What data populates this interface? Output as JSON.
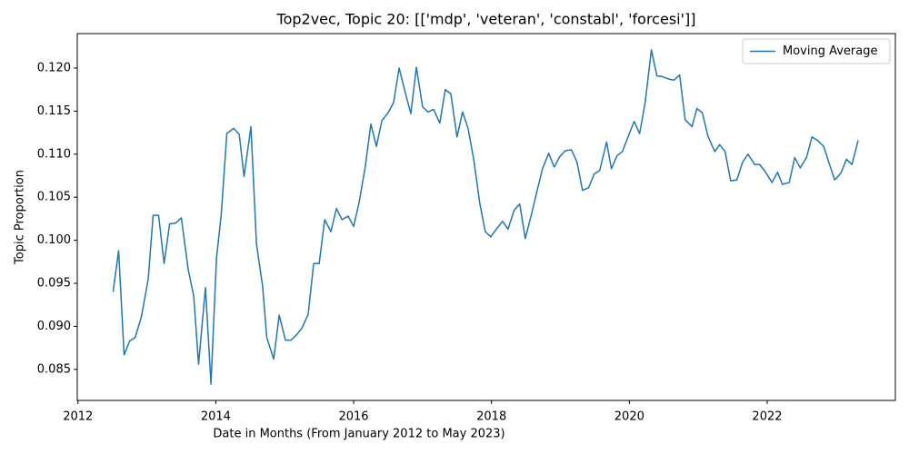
{
  "chart_data": {
    "type": "line",
    "title": "Top2vec, Topic 20: [['mdp', 'veteran', 'constabl', 'forcesi']]",
    "x_label": "Date in Months (From January 2012 to May 2023)",
    "y_label": "Topic Proportion",
    "x": [
      2012.51,
      2012.59,
      2012.67,
      2012.75,
      2012.83,
      2012.92,
      2013.02,
      2013.09,
      2013.17,
      2013.25,
      2013.33,
      2013.42,
      2013.5,
      2013.6,
      2013.68,
      2013.75,
      2013.85,
      2013.93,
      2014.01,
      2014.08,
      2014.16,
      2014.26,
      2014.34,
      2014.41,
      2014.51,
      2014.59,
      2014.68,
      2014.74,
      2014.84,
      2014.92,
      2015.01,
      2015.09,
      2015.17,
      2015.25,
      2015.34,
      2015.42,
      2015.5,
      2015.58,
      2015.67,
      2015.75,
      2015.83,
      2015.92,
      2016.0,
      2016.08,
      2016.17,
      2016.25,
      2016.33,
      2016.41,
      2016.5,
      2016.58,
      2016.66,
      2016.75,
      2016.83,
      2016.91,
      2017.0,
      2017.08,
      2017.16,
      2017.25,
      2017.33,
      2017.41,
      2017.5,
      2017.58,
      2017.66,
      2017.74,
      2017.83,
      2017.91,
      2017.99,
      2018.08,
      2018.16,
      2018.24,
      2018.33,
      2018.41,
      2018.49,
      2018.58,
      2018.66,
      2018.74,
      2018.83,
      2018.91,
      2018.99,
      2019.07,
      2019.16,
      2019.24,
      2019.32,
      2019.41,
      2019.49,
      2019.57,
      2019.67,
      2019.74,
      2019.82,
      2019.9,
      2020.0,
      2020.07,
      2020.15,
      2020.23,
      2020.32,
      2020.4,
      2020.48,
      2020.58,
      2020.65,
      2020.73,
      2020.81,
      2020.91,
      2020.98,
      2021.06,
      2021.14,
      2021.24,
      2021.31,
      2021.39,
      2021.47,
      2021.56,
      2021.64,
      2021.72,
      2021.82,
      2021.89,
      2021.97,
      2022.07,
      2022.15,
      2022.22,
      2022.32,
      2022.4,
      2022.48,
      2022.57,
      2022.65,
      2022.73,
      2022.82,
      2022.9,
      2022.98,
      2023.07,
      2023.15,
      2023.23,
      2023.32
    ],
    "series": [
      {
        "name": "Moving Average",
        "color": "#1f77b4",
        "values": [
          0.094,
          0.0988,
          0.0867,
          0.0883,
          0.0887,
          0.0911,
          0.0955,
          0.1029,
          0.1029,
          0.0973,
          0.1019,
          0.102,
          0.1026,
          0.0966,
          0.0935,
          0.0856,
          0.0945,
          0.0833,
          0.0979,
          0.1031,
          0.1124,
          0.113,
          0.1123,
          0.1074,
          0.1132,
          0.0996,
          0.0946,
          0.0887,
          0.0862,
          0.0913,
          0.0884,
          0.0884,
          0.089,
          0.0898,
          0.0914,
          0.0973,
          0.0973,
          0.1024,
          0.101,
          0.1037,
          0.1024,
          0.1028,
          0.1016,
          0.1044,
          0.1086,
          0.1135,
          0.1109,
          0.1139,
          0.1148,
          0.116,
          0.12,
          0.1171,
          0.1147,
          0.1201,
          0.1155,
          0.1149,
          0.1152,
          0.1136,
          0.1175,
          0.117,
          0.112,
          0.1149,
          0.113,
          0.1095,
          0.1043,
          0.101,
          0.1004,
          0.1014,
          0.1022,
          0.1013,
          0.1035,
          0.1042,
          0.1002,
          0.103,
          0.1057,
          0.1083,
          0.1101,
          0.1085,
          0.1097,
          0.1104,
          0.1105,
          0.1091,
          0.1058,
          0.1061,
          0.1077,
          0.1081,
          0.1114,
          0.1083,
          0.1098,
          0.1103,
          0.1124,
          0.1138,
          0.1124,
          0.116,
          0.1221,
          0.1191,
          0.119,
          0.1187,
          0.1186,
          0.1192,
          0.114,
          0.1132,
          0.1153,
          0.1148,
          0.1121,
          0.1103,
          0.1111,
          0.1103,
          0.1069,
          0.107,
          0.109,
          0.11,
          0.1088,
          0.1088,
          0.108,
          0.1067,
          0.1079,
          0.1065,
          0.1067,
          0.1096,
          0.1084,
          0.1096,
          0.112,
          0.1116,
          0.1109,
          0.1089,
          0.107,
          0.1078,
          0.1094,
          0.1088,
          0.1116
        ]
      }
    ],
    "xlim": [
      2011.99,
      2023.86
    ],
    "xticks": [
      2012,
      2014,
      2016,
      2018,
      2020,
      2022
    ],
    "ylim": [
      0.0814,
      0.124
    ],
    "yticks": [
      0.085,
      {
        "value": 0.09,
        "label": "0.090"
      },
      0.095,
      {
        "value": 0.1,
        "label": "0.100"
      },
      0.105,
      {
        "value": 0.11,
        "label": "0.110"
      },
      0.115,
      {
        "value": 0.12,
        "label": "0.120"
      }
    ],
    "grid": false,
    "legend": "upper right"
  }
}
